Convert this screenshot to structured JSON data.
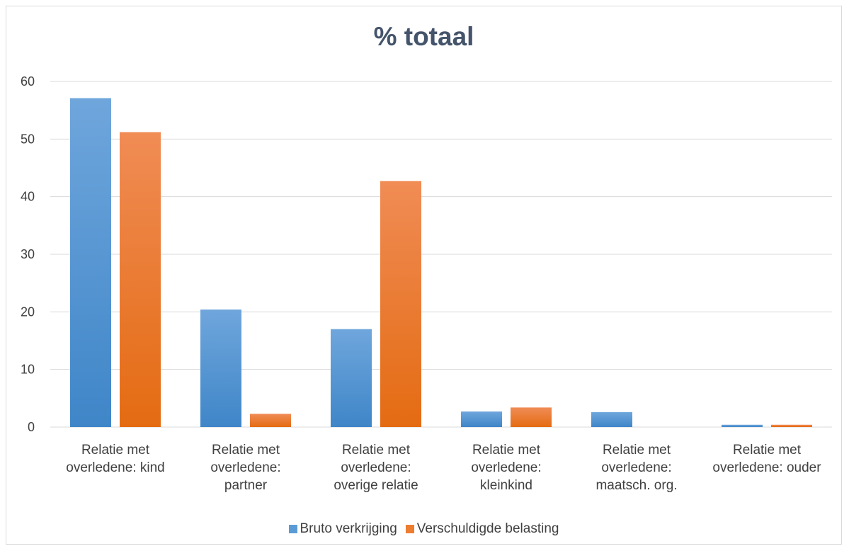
{
  "chart_data": {
    "type": "bar",
    "title": "% totaal",
    "categories": [
      [
        "Relatie met",
        "overledene: kind"
      ],
      [
        "Relatie met",
        "overledene:",
        "partner"
      ],
      [
        "Relatie met",
        "overledene:",
        "overige relatie"
      ],
      [
        "Relatie met",
        "overledene:",
        "kleinkind"
      ],
      [
        "Relatie met",
        "overledene:",
        "maatsch. org."
      ],
      [
        "Relatie met",
        "overledene: ouder"
      ]
    ],
    "series": [
      {
        "name": "Bruto verkrijging",
        "color": "#5b9bd5",
        "color_light": "#6fa6dc",
        "color_dark": "#3f86c8",
        "values": [
          57.1,
          20.4,
          17.0,
          2.7,
          2.6,
          0.4
        ]
      },
      {
        "name": "Verschuldigde belasting",
        "color": "#ed7d31",
        "color_light": "#f08c55",
        "color_dark": "#e46b12",
        "values": [
          51.2,
          2.3,
          42.7,
          3.4,
          0.0,
          0.4
        ]
      }
    ],
    "ylim": [
      0,
      60
    ],
    "yticks": [
      0,
      10,
      20,
      30,
      40,
      50,
      60
    ],
    "grid": true,
    "legend": "bottom",
    "xlabel": "",
    "ylabel": ""
  }
}
